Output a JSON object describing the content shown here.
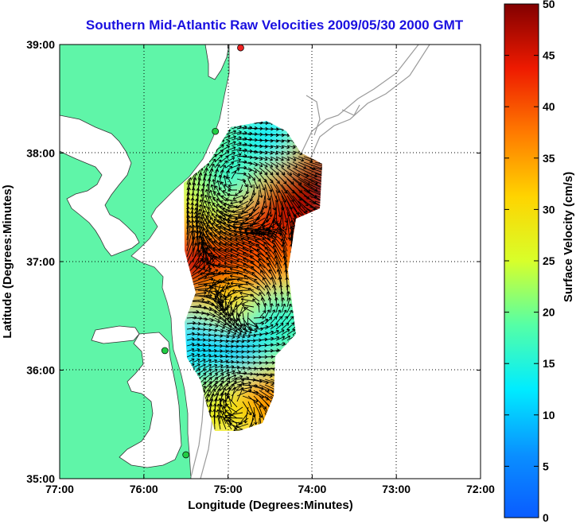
{
  "chart_data": {
    "type": "heatmap",
    "title": "Southern Mid-Atlantic Raw Velocities 2009/05/30 2000 GMT",
    "xlabel": "Longitude (Degrees:Minutes)",
    "ylabel": "Latitude (Degrees:Minutes)",
    "x_ticks": [
      "77:00",
      "76:00",
      "75:00",
      "74:00",
      "73:00",
      "72:00"
    ],
    "y_ticks": [
      "39:00",
      "38:00",
      "37:00",
      "36:00",
      "35:00"
    ],
    "xlim": [
      -77,
      -72
    ],
    "ylim": [
      35,
      39
    ],
    "grid": true,
    "colorbar": {
      "label": "Surface Velocity (cm/s)",
      "ticks": [
        "50",
        "45",
        "40",
        "35",
        "30",
        "25",
        "20",
        "15",
        "10",
        "5",
        "0"
      ],
      "range": [
        0,
        50
      ],
      "colormap": "jet"
    },
    "colors": {
      "land": "#5ff5a8",
      "title": "#1a10e0",
      "vectors": "#000000",
      "bathymetry": "#9a9a9a",
      "station_green": "#22cc44",
      "station_red": "#ee2222"
    },
    "stations": [
      {
        "lon": -74.85,
        "lat": 38.97,
        "status": "red"
      },
      {
        "lon": -75.15,
        "lat": 38.2,
        "status": "green"
      },
      {
        "lon": -75.75,
        "lat": 36.18,
        "status": "green"
      },
      {
        "lon": -75.5,
        "lat": 35.22,
        "status": "green"
      }
    ],
    "velocity_field": [
      {
        "lon": -74.0,
        "lat": 37.75,
        "speed": 50
      },
      {
        "lon": -74.35,
        "lat": 37.55,
        "speed": 48
      },
      {
        "lon": -74.75,
        "lat": 37.35,
        "speed": 45
      },
      {
        "lon": -75.15,
        "lat": 37.1,
        "speed": 45
      },
      {
        "lon": -75.4,
        "lat": 36.9,
        "speed": 47
      },
      {
        "lon": -74.6,
        "lat": 36.95,
        "speed": 40
      },
      {
        "lon": -74.9,
        "lat": 37.7,
        "speed": 14
      },
      {
        "lon": -75.05,
        "lat": 37.45,
        "speed": 22
      },
      {
        "lon": -74.45,
        "lat": 38.05,
        "speed": 12
      },
      {
        "lon": -75.0,
        "lat": 36.55,
        "speed": 30
      },
      {
        "lon": -74.85,
        "lat": 36.2,
        "speed": 9
      },
      {
        "lon": -74.45,
        "lat": 36.5,
        "speed": 15
      },
      {
        "lon": -75.3,
        "lat": 36.3,
        "speed": 10
      },
      {
        "lon": -74.6,
        "lat": 35.7,
        "speed": 38
      },
      {
        "lon": -74.85,
        "lat": 35.55,
        "speed": 28
      }
    ]
  }
}
